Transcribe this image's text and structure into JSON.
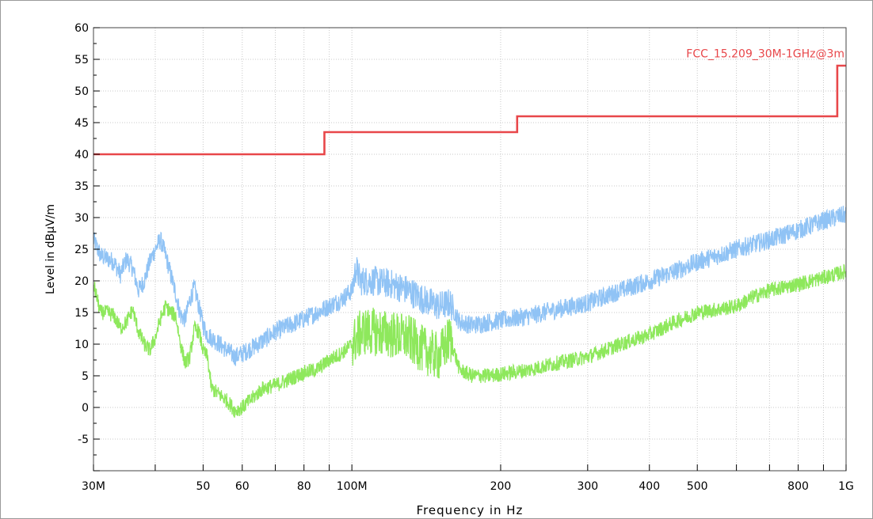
{
  "chart_data": {
    "type": "line",
    "xlabel": "Frequency in Hz",
    "ylabel": "Level in dBµV/m",
    "x_scale": "log",
    "xlim": [
      30000000,
      1000000000
    ],
    "ylim": [
      -10,
      60
    ],
    "grid": true,
    "y_ticks": [
      60,
      55,
      50,
      45,
      40,
      35,
      30,
      25,
      20,
      15,
      10,
      5,
      0,
      -5
    ],
    "x_ticks": [
      {
        "value": 30000000,
        "label": "30M"
      },
      {
        "value": 50000000,
        "label": "50"
      },
      {
        "value": 60000000,
        "label": "60"
      },
      {
        "value": 80000000,
        "label": "80"
      },
      {
        "value": 100000000,
        "label": "100M"
      },
      {
        "value": 200000000,
        "label": "200"
      },
      {
        "value": 300000000,
        "label": "300"
      },
      {
        "value": 400000000,
        "label": "400"
      },
      {
        "value": 500000000,
        "label": "500"
      },
      {
        "value": 800000000,
        "label": "800"
      },
      {
        "value": 1000000000,
        "label": "1G"
      }
    ],
    "limit": {
      "name": "FCC_15.209_30M-1GHz@3m",
      "color": "#e8474a",
      "points": [
        [
          30000000,
          40
        ],
        [
          88000000,
          40
        ],
        [
          88000000,
          43.5
        ],
        [
          216000000,
          43.5
        ],
        [
          216000000,
          46
        ],
        [
          960000000,
          46
        ],
        [
          960000000,
          54
        ],
        [
          1000000000,
          54
        ]
      ]
    },
    "series": [
      {
        "color": "#90c3f5",
        "noise_band": 1.5,
        "points": [
          [
            30000000,
            26.5
          ],
          [
            31000000,
            24
          ],
          [
            32000000,
            23.5
          ],
          [
            33000000,
            23
          ],
          [
            34000000,
            21
          ],
          [
            35000000,
            23.5
          ],
          [
            36000000,
            22
          ],
          [
            37000000,
            18.5
          ],
          [
            38000000,
            20
          ],
          [
            39000000,
            23
          ],
          [
            40000000,
            25
          ],
          [
            41000000,
            26.5
          ],
          [
            42000000,
            24
          ],
          [
            43000000,
            21
          ],
          [
            44000000,
            18
          ],
          [
            45000000,
            14.5
          ],
          [
            46000000,
            14
          ],
          [
            47000000,
            17
          ],
          [
            48000000,
            19
          ],
          [
            49000000,
            16
          ],
          [
            50000000,
            13
          ],
          [
            51000000,
            11.5
          ],
          [
            52000000,
            11
          ],
          [
            54000000,
            10
          ],
          [
            56000000,
            9
          ],
          [
            58000000,
            8
          ],
          [
            60000000,
            8.5
          ],
          [
            63000000,
            9.5
          ],
          [
            66000000,
            10.5
          ],
          [
            70000000,
            12
          ],
          [
            75000000,
            13
          ],
          [
            80000000,
            14
          ],
          [
            85000000,
            15
          ],
          [
            90000000,
            16
          ],
          [
            95000000,
            17
          ],
          [
            100000000,
            18.5
          ],
          [
            102000000,
            22
          ],
          [
            104000000,
            20
          ],
          [
            110000000,
            20
          ],
          [
            120000000,
            19.5
          ],
          [
            130000000,
            18.5
          ],
          [
            140000000,
            17
          ],
          [
            150000000,
            16
          ],
          [
            158000000,
            16.5
          ],
          [
            165000000,
            13.5
          ],
          [
            175000000,
            13
          ],
          [
            190000000,
            13.5
          ],
          [
            210000000,
            14
          ],
          [
            230000000,
            14.5
          ],
          [
            260000000,
            15.5
          ],
          [
            300000000,
            16.5
          ],
          [
            350000000,
            18.5
          ],
          [
            400000000,
            20
          ],
          [
            450000000,
            21.5
          ],
          [
            500000000,
            23
          ],
          [
            550000000,
            24
          ],
          [
            600000000,
            25
          ],
          [
            700000000,
            26.5
          ],
          [
            800000000,
            28
          ],
          [
            900000000,
            29.5
          ],
          [
            1000000000,
            30.5
          ]
        ]
      },
      {
        "color": "#8ee85c",
        "noise_band": 1.2,
        "points": [
          [
            30000000,
            19.5
          ],
          [
            31000000,
            15
          ],
          [
            32000000,
            15
          ],
          [
            33000000,
            14.5
          ],
          [
            34000000,
            12.5
          ],
          [
            35000000,
            13.5
          ],
          [
            36000000,
            15.5
          ],
          [
            37000000,
            12
          ],
          [
            38000000,
            10
          ],
          [
            39000000,
            9
          ],
          [
            40000000,
            11
          ],
          [
            41000000,
            14
          ],
          [
            42000000,
            16
          ],
          [
            43000000,
            15
          ],
          [
            44000000,
            14.5
          ],
          [
            45000000,
            10
          ],
          [
            46000000,
            7
          ],
          [
            47000000,
            8
          ],
          [
            48000000,
            12.5
          ],
          [
            49000000,
            12
          ],
          [
            50000000,
            9
          ],
          [
            51000000,
            8
          ],
          [
            52000000,
            3
          ],
          [
            54000000,
            2
          ],
          [
            56000000,
            1
          ],
          [
            58000000,
            -0.5
          ],
          [
            60000000,
            0
          ],
          [
            63000000,
            1.5
          ],
          [
            66000000,
            3
          ],
          [
            70000000,
            3.5
          ],
          [
            75000000,
            4.5
          ],
          [
            80000000,
            5.5
          ],
          [
            85000000,
            6
          ],
          [
            90000000,
            7.5
          ],
          [
            95000000,
            8.5
          ],
          [
            100000000,
            10
          ],
          [
            105000000,
            12
          ],
          [
            110000000,
            12
          ],
          [
            120000000,
            11.5
          ],
          [
            130000000,
            11
          ],
          [
            140000000,
            9
          ],
          [
            150000000,
            8
          ],
          [
            158000000,
            11
          ],
          [
            165000000,
            6
          ],
          [
            175000000,
            5
          ],
          [
            190000000,
            5
          ],
          [
            210000000,
            5.5
          ],
          [
            230000000,
            6
          ],
          [
            260000000,
            7
          ],
          [
            300000000,
            8
          ],
          [
            350000000,
            10
          ],
          [
            400000000,
            11.5
          ],
          [
            450000000,
            13.5
          ],
          [
            500000000,
            15
          ],
          [
            550000000,
            15.5
          ],
          [
            600000000,
            16
          ],
          [
            650000000,
            17.5
          ],
          [
            700000000,
            18.5
          ],
          [
            800000000,
            19.5
          ],
          [
            900000000,
            20.5
          ],
          [
            1000000000,
            21.5
          ]
        ]
      }
    ]
  }
}
